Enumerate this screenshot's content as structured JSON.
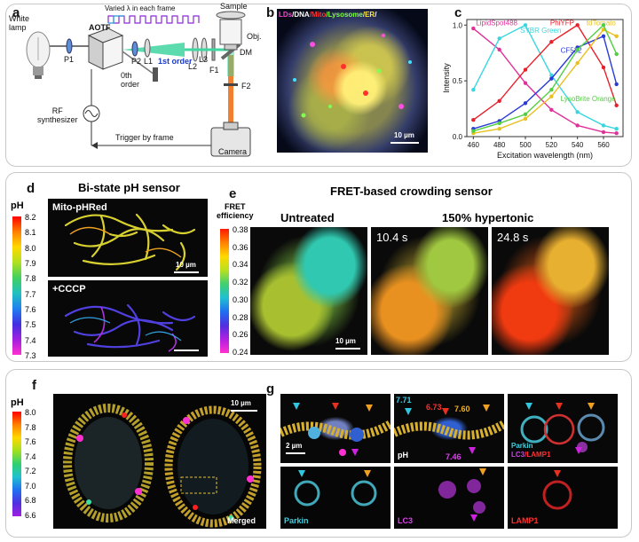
{
  "panel_top": {
    "a": {
      "label": "a",
      "white_lamp": "White\nlamp",
      "p1": "P1",
      "aotf": "AOTF",
      "p2": "P2",
      "l1": "L1",
      "l2": "L2",
      "l3": "L3",
      "f1": "F1",
      "f2": "F2",
      "dm": "DM",
      "obj": "Obj.",
      "sample": "Sample",
      "camera": "Camera",
      "varied": "Varied λ in each frame",
      "first_order": "1st order",
      "zeroth_order": "0th\norder",
      "rf": "RF\nsynthesizer",
      "trigger": "Trigger by frame"
    },
    "b": {
      "label": "b",
      "legend": [
        {
          "text": "LDs",
          "color": "#ff3fd0"
        },
        {
          "text": "/DNA",
          "color": "#ffffff"
        },
        {
          "text": "/Mito",
          "color": "#ff3030"
        },
        {
          "text": "/Lysosome",
          "color": "#7fff40"
        },
        {
          "text": "/ER",
          "color": "#ffe640"
        },
        {
          "text": "/",
          "color": "#ffffff"
        }
      ],
      "scale": "10 µm"
    },
    "c": {
      "label": "c",
      "chart_data": {
        "type": "line",
        "x": [
          460,
          480,
          500,
          520,
          540,
          560,
          570
        ],
        "xlabel": "Excitation wavelength (nm)",
        "ylabel": "Intensity",
        "xlim": [
          455,
          575
        ],
        "ylim": [
          0,
          1.05
        ],
        "xticks": [
          "460",
          "480",
          "500",
          "520",
          "540",
          "560"
        ],
        "yticks": [
          "0.0",
          "0.5",
          "1.0"
        ],
        "series": [
          {
            "name": "LipidSpot488",
            "color": "#e0309a",
            "values": [
              0.97,
              0.78,
              0.48,
              0.24,
              0.1,
              0.04,
              0.03
            ]
          },
          {
            "name": "SYBR Green",
            "color": "#3ad6e0",
            "values": [
              0.42,
              0.88,
              1.0,
              0.55,
              0.22,
              0.1,
              0.07
            ]
          },
          {
            "name": "PhiYFP",
            "color": "#e8202a",
            "values": [
              0.15,
              0.32,
              0.6,
              0.85,
              1.0,
              0.62,
              0.28
            ]
          },
          {
            "name": "CF532",
            "color": "#2a3ad8",
            "values": [
              0.07,
              0.14,
              0.3,
              0.52,
              0.8,
              0.9,
              0.47
            ]
          },
          {
            "name": "tdTomato",
            "color": "#e8c020",
            "values": [
              0.03,
              0.07,
              0.16,
              0.36,
              0.66,
              0.96,
              0.9
            ]
          },
          {
            "name": "LysoBrite Orange",
            "color": "#50d040",
            "values": [
              0.05,
              0.12,
              0.2,
              0.42,
              0.78,
              1.0,
              0.74
            ]
          }
        ]
      }
    }
  },
  "panel_mid": {
    "d": {
      "label": "d",
      "title": "Bi-state pH sensor",
      "cb_title": "pH",
      "cb_ticks": [
        "8.2",
        "8.1",
        "8.0",
        "7.9",
        "7.8",
        "7.7",
        "7.6",
        "7.5",
        "7.4",
        "7.3"
      ],
      "img1": "Mito-pHRed",
      "img2": "+CCCP",
      "scale": "10 µm"
    },
    "e": {
      "label": "e",
      "title": "FRET-based crowding sensor",
      "cb_title": "FRET\nefficiency",
      "cb_ticks": [
        "0.38",
        "0.36",
        "0.34",
        "0.32",
        "0.30",
        "0.28",
        "0.26",
        "0.24"
      ],
      "untreated": "Untreated",
      "hypertonic": "150% hypertonic",
      "t1": "10.4 s",
      "t2": "24.8 s",
      "scale": "10 µm"
    }
  },
  "panel_bot": {
    "f": {
      "label": "f",
      "cb_title": "pH",
      "cb_ticks": [
        "8.0",
        "7.8",
        "7.6",
        "7.4",
        "7.2",
        "7.0",
        "6.8",
        "6.6"
      ],
      "scale": "10 µm",
      "merged": "Merged"
    },
    "g": {
      "label": "g",
      "scale": "2 µm",
      "ph_tag": "pH",
      "v1": "7.71",
      "v2": "6.73",
      "v3": "7.60",
      "v4": "7.46",
      "merge_parkin": "Parkin",
      "merge_lc3": "LC3",
      "merge_lamp": "/LAMP1",
      "parkin": "Parkin",
      "lc3": "LC3",
      "lamp1": "LAMP1"
    }
  }
}
